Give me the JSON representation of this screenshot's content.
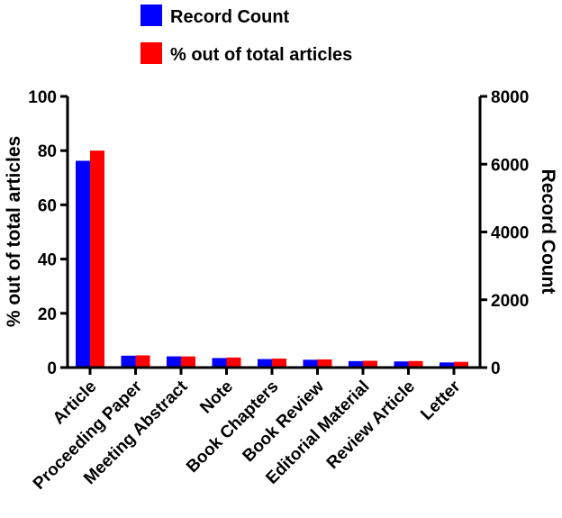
{
  "chart_data": {
    "type": "bar",
    "categories": [
      "Article",
      "Proceeding Paper",
      "Meeting Abstract",
      "Note",
      "Book Chapters",
      "Book Review",
      "Editorial Material",
      "Review Article",
      "Letter"
    ],
    "series": [
      {
        "name": "Record Count",
        "axis": "right",
        "color": "#0000ff",
        "values": [
          6100,
          350,
          330,
          280,
          250,
          230,
          190,
          180,
          150
        ]
      },
      {
        "name": "% out of total articles",
        "axis": "left",
        "color": "#ff0000",
        "values": [
          80,
          4.5,
          4.1,
          3.7,
          3.3,
          3.0,
          2.5,
          2.4,
          2.1
        ]
      }
    ],
    "y_left": {
      "label": "% out of total articles",
      "lim": [
        0,
        100
      ],
      "ticks": [
        "0",
        "20",
        "40",
        "60",
        "80",
        "100"
      ]
    },
    "y_right": {
      "label": "Record Count",
      "lim": [
        0,
        8000
      ],
      "ticks": [
        "0",
        "2000",
        "4000",
        "6000",
        "8000"
      ]
    },
    "grid": false,
    "legend": "top"
  }
}
